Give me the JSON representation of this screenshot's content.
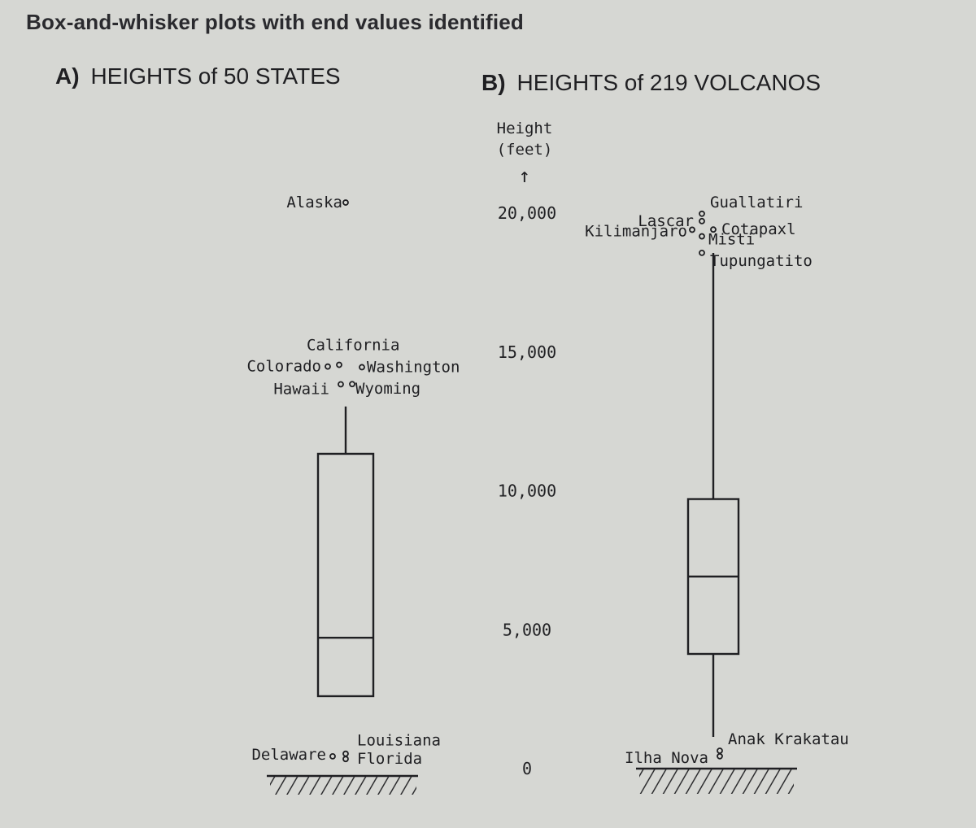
{
  "page": {
    "title": "Box-and-whisker plots with end values identified"
  },
  "panels": {
    "a": {
      "tag": "A)",
      "title": "HEIGHTS of 50 STATES"
    },
    "b": {
      "tag": "B)",
      "title": "HEIGHTS of 219 VOLCANOS"
    }
  },
  "chart_data": [
    {
      "type": "box",
      "title": "HEIGHTS of 50 STATES",
      "ylabel": "Height (feet)",
      "ylim": [
        0,
        20500
      ],
      "box": {
        "q1": 2600,
        "median": 4700,
        "q3": 11300,
        "whisker_low": 2600,
        "whisker_high": 13000
      },
      "outliers": [
        {
          "name": "Alaska",
          "value": 20320
        },
        {
          "name": "California",
          "value": 14495
        },
        {
          "name": "Colorado",
          "value": 14433
        },
        {
          "name": "Washington",
          "value": 14410
        },
        {
          "name": "Hawaii",
          "value": 13796
        },
        {
          "name": "Wyoming",
          "value": 13804
        },
        {
          "name": "Louisiana",
          "value": 535
        },
        {
          "name": "Delaware",
          "value": 442
        },
        {
          "name": "Florida",
          "value": 345
        }
      ]
    },
    {
      "type": "box",
      "title": "HEIGHTS of 219 VOLCANOS",
      "ylabel": "Height (feet)",
      "ylim": [
        0,
        20500
      ],
      "box": {
        "q1": 4000,
        "median": 6800,
        "q3": 9600,
        "whisker_low": 1000,
        "whisker_high": 18500
      },
      "outliers": [
        {
          "name": "Guallatiri",
          "value": 19918
        },
        {
          "name": "Lascar",
          "value": 19652
        },
        {
          "name": "Cotapaxl",
          "value": 19347
        },
        {
          "name": "Kilimanjaro",
          "value": 19340
        },
        {
          "name": "Misti",
          "value": 19101
        },
        {
          "name": "Tupungatito",
          "value": 18504
        },
        {
          "name": "Anak Krakatau",
          "value": 500
        },
        {
          "name": "Ilha Nova",
          "value": 300
        }
      ]
    }
  ],
  "axis": {
    "label_line1": "Height",
    "label_line2": "(feet)",
    "arrow": "↑",
    "ticks": [
      {
        "value": 0,
        "label": "0"
      },
      {
        "value": 5000,
        "label": "5,000"
      },
      {
        "value": 10000,
        "label": "10,000"
      },
      {
        "value": 15000,
        "label": "15,000"
      },
      {
        "value": 20000,
        "label": "20,000"
      }
    ]
  }
}
